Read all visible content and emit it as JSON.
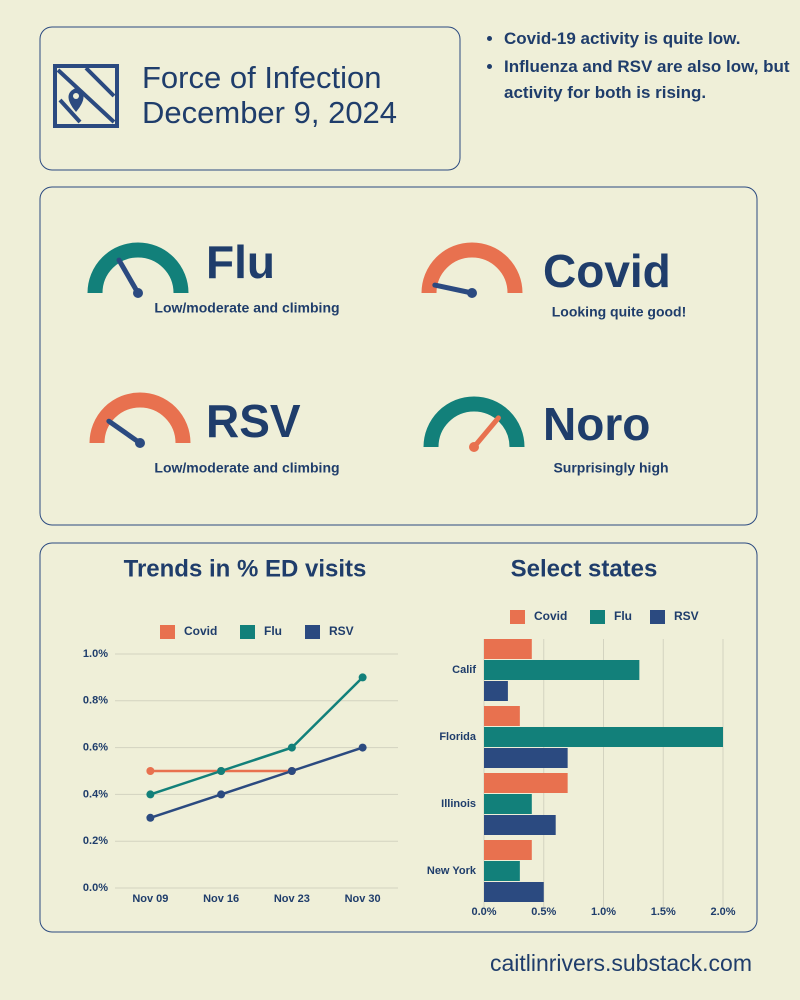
{
  "header": {
    "title_line1": "Force of Infection",
    "title_line2": "December 9, 2024"
  },
  "bullets": [
    "Covid-19 activity is quite low.",
    "Influenza and RSV are also low, but activity for both is rising."
  ],
  "gauges": [
    {
      "label": "Flu",
      "caption": "Low/moderate and climbing"
    },
    {
      "label": "Covid",
      "caption": "Looking quite good!"
    },
    {
      "label": "RSV",
      "caption": "Low/moderate and climbing"
    },
    {
      "label": "Noro",
      "caption": "Surprisingly high"
    }
  ],
  "chart_data": [
    {
      "type": "line",
      "title": "Trends in % ED visits",
      "categories": [
        "Nov 09",
        "Nov 16",
        "Nov 23",
        "Nov 30"
      ],
      "series": [
        {
          "name": "Covid",
          "color": "#e8714f",
          "values": [
            0.5,
            0.5,
            0.5,
            null
          ]
        },
        {
          "name": "Flu",
          "color": "#12807a",
          "values": [
            0.4,
            0.5,
            0.6,
            0.9
          ]
        },
        {
          "name": "RSV",
          "color": "#2b4a80",
          "values": [
            0.3,
            0.4,
            0.5,
            0.6
          ]
        }
      ],
      "ylim": [
        0,
        1.0
      ],
      "yticks": [
        {
          "value": 0,
          "label": "0.0%"
        },
        {
          "value": 0.2,
          "label": "0.2%"
        },
        {
          "value": 0.4,
          "label": "0.4%"
        },
        {
          "value": 0.6,
          "label": "0.6%"
        },
        {
          "value": 0.8,
          "label": "0.8%"
        },
        {
          "value": 1.0,
          "label": "1.0%"
        }
      ],
      "grid": true
    },
    {
      "type": "hbar",
      "title": "Select states",
      "categories": [
        "Calif",
        "Florida",
        "Illinois",
        "New York"
      ],
      "series": [
        {
          "name": "Covid",
          "color": "#e8714f",
          "values": [
            0.4,
            0.3,
            0.7,
            0.4
          ]
        },
        {
          "name": "Flu",
          "color": "#12807a",
          "values": [
            1.3,
            2.0,
            0.4,
            0.3
          ]
        },
        {
          "name": "RSV",
          "color": "#2b4a80",
          "values": [
            0.2,
            0.7,
            0.6,
            0.5
          ]
        }
      ],
      "xlim": [
        0,
        2.0
      ],
      "xticks": [
        {
          "value": 0,
          "label": "0.0%"
        },
        {
          "value": 0.5,
          "label": "0.5%"
        },
        {
          "value": 1.0,
          "label": "1.0%"
        },
        {
          "value": 1.5,
          "label": "1.5%"
        },
        {
          "value": 2.0,
          "label": "2.0%"
        }
      ],
      "grid": true
    }
  ],
  "footer": "caitlinrivers.substack.com"
}
